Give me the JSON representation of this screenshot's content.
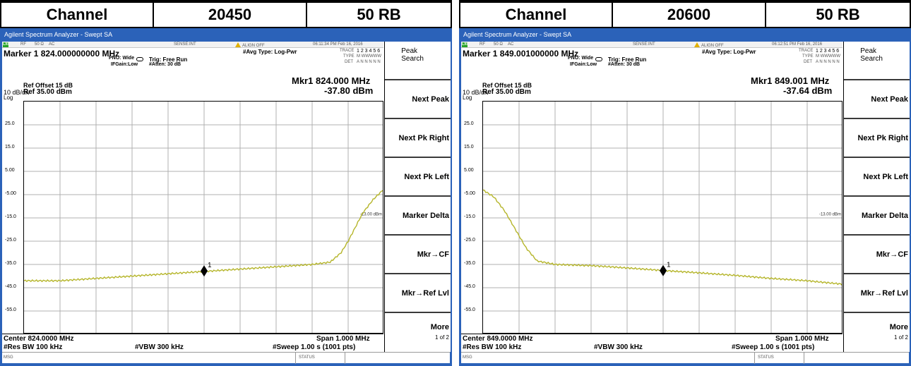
{
  "panels": [
    {
      "header": {
        "channel_label": "Channel",
        "channel_value": "20450",
        "rb": "50 RB"
      },
      "window_title": "Agilent Spectrum Analyzer - Swept SA",
      "status": {
        "lxi": "LXI",
        "rf": "RF",
        "impedance": "50 Ω",
        "coupling": "AC",
        "sense": "SENSE:INT",
        "align": "ALIGN OFF",
        "time": "06:11:34 PM Feb 16, 2016"
      },
      "marker_readout": "Marker 1  824.000000000 MHz",
      "pno": "PNO: Wide",
      "ifgain": "IFGain:Low",
      "trig": "Trig: Free Run",
      "atten": "#Atten: 30 dB",
      "avg_type": "#Avg Type: Log-Pwr",
      "trace_label": "TRACE",
      "trace_nums": "1 2 3 4 5 6",
      "type_label": "TYPE",
      "type_vals": "M WWWWW",
      "det_label": "DET",
      "det_vals": "A N N N N N",
      "ref_offset": "Ref Offset 15 dB",
      "scale": "10 dB/div",
      "ref_level": "Ref 35.00 dBm",
      "log": "Log",
      "mkr_freq": "Mkr1 824.000 MHz",
      "mkr_amp": "-37.80 dBm",
      "y_ticks": [
        "25.0",
        "15.0",
        "5.00",
        "-5.00",
        "-15.0",
        "-25.0",
        "-35.0",
        "-45.0",
        "-55.0"
      ],
      "limit_label": "-13.00 dBm",
      "marker_number": "1",
      "center": "Center 824.0000 MHz",
      "res_bw": "#Res BW 100 kHz",
      "vbw": "#VBW 300 kHz",
      "span": "Span 1.000 MHz",
      "sweep": "#Sweep  1.00 s (1001 pts)",
      "msg": "MSG",
      "status_label": "STATUS"
    },
    {
      "header": {
        "channel_label": "Channel",
        "channel_value": "20600",
        "rb": "50 RB"
      },
      "window_title": "Agilent Spectrum Analyzer - Swept SA",
      "status": {
        "lxi": "LXI",
        "rf": "RF",
        "impedance": "50 Ω",
        "coupling": "AC",
        "sense": "SENSE:INT",
        "align": "ALIGN OFF",
        "time": "06:12:51 PM Feb 16, 2016"
      },
      "marker_readout": "Marker 1  849.001000000 MHz",
      "pno": "PNO: Wide",
      "ifgain": "IFGain:Low",
      "trig": "Trig: Free Run",
      "atten": "#Atten: 30 dB",
      "avg_type": "#Avg Type: Log-Pwr",
      "trace_label": "TRACE",
      "trace_nums": "1 2 3 4 5 6",
      "type_label": "TYPE",
      "type_vals": "M WWWWW",
      "det_label": "DET",
      "det_vals": "A N N N N N",
      "ref_offset": "Ref Offset 15 dB",
      "scale": "10 dB/div",
      "ref_level": "Ref 35.00 dBm",
      "log": "Log",
      "mkr_freq": "Mkr1 849.001 MHz",
      "mkr_amp": "-37.64 dBm",
      "y_ticks": [
        "25.0",
        "15.0",
        "5.00",
        "-5.00",
        "-15.0",
        "-25.0",
        "-35.0",
        "-45.0",
        "-55.0"
      ],
      "limit_label": "-13.00 dBm",
      "marker_number": "1",
      "center": "Center 849.0000 MHz",
      "res_bw": "#Res BW 100 kHz",
      "vbw": "#VBW 300 kHz",
      "span": "Span 1.000 MHz",
      "sweep": "#Sweep  1.00 s (1001 pts)",
      "msg": "MSG",
      "status_label": "STATUS"
    }
  ],
  "softkeys": {
    "peak_search": "Peak Search",
    "next_peak": "Next Peak",
    "next_pk_right": "Next Pk Right",
    "next_pk_left": "Next Pk Left",
    "marker_delta": "Marker Delta",
    "mkr_cf": "Mkr→CF",
    "mkr_ref_lvl": "Mkr→Ref Lvl",
    "more": "More",
    "page": "1 of 2"
  },
  "traces": {
    "color": "#b5b52a",
    "left": {
      "marker": {
        "x_frac": 0.5,
        "y_dbm": -37.8
      },
      "points_dbm": [
        [
          0,
          -42
        ],
        [
          0.1,
          -42
        ],
        [
          0.2,
          -41
        ],
        [
          0.3,
          -40
        ],
        [
          0.4,
          -39
        ],
        [
          0.5,
          -38
        ],
        [
          0.6,
          -37
        ],
        [
          0.7,
          -36
        ],
        [
          0.8,
          -35
        ],
        [
          0.85,
          -34
        ],
        [
          0.88,
          -30
        ],
        [
          0.9,
          -25
        ],
        [
          0.92,
          -19
        ],
        [
          0.94,
          -13
        ],
        [
          0.97,
          -7
        ],
        [
          1.0,
          -2.5
        ]
      ]
    },
    "right": {
      "marker": {
        "x_frac": 0.5,
        "y_dbm": -37.64
      },
      "points_dbm": [
        [
          0,
          -3
        ],
        [
          0.03,
          -6
        ],
        [
          0.06,
          -12
        ],
        [
          0.09,
          -20
        ],
        [
          0.12,
          -28
        ],
        [
          0.15,
          -33.5
        ],
        [
          0.2,
          -35
        ],
        [
          0.3,
          -35.5
        ],
        [
          0.4,
          -36.5
        ],
        [
          0.5,
          -37.6
        ],
        [
          0.6,
          -38.6
        ],
        [
          0.7,
          -39.7
        ],
        [
          0.8,
          -41
        ],
        [
          0.9,
          -42
        ],
        [
          1.0,
          -43.5
        ]
      ]
    }
  }
}
